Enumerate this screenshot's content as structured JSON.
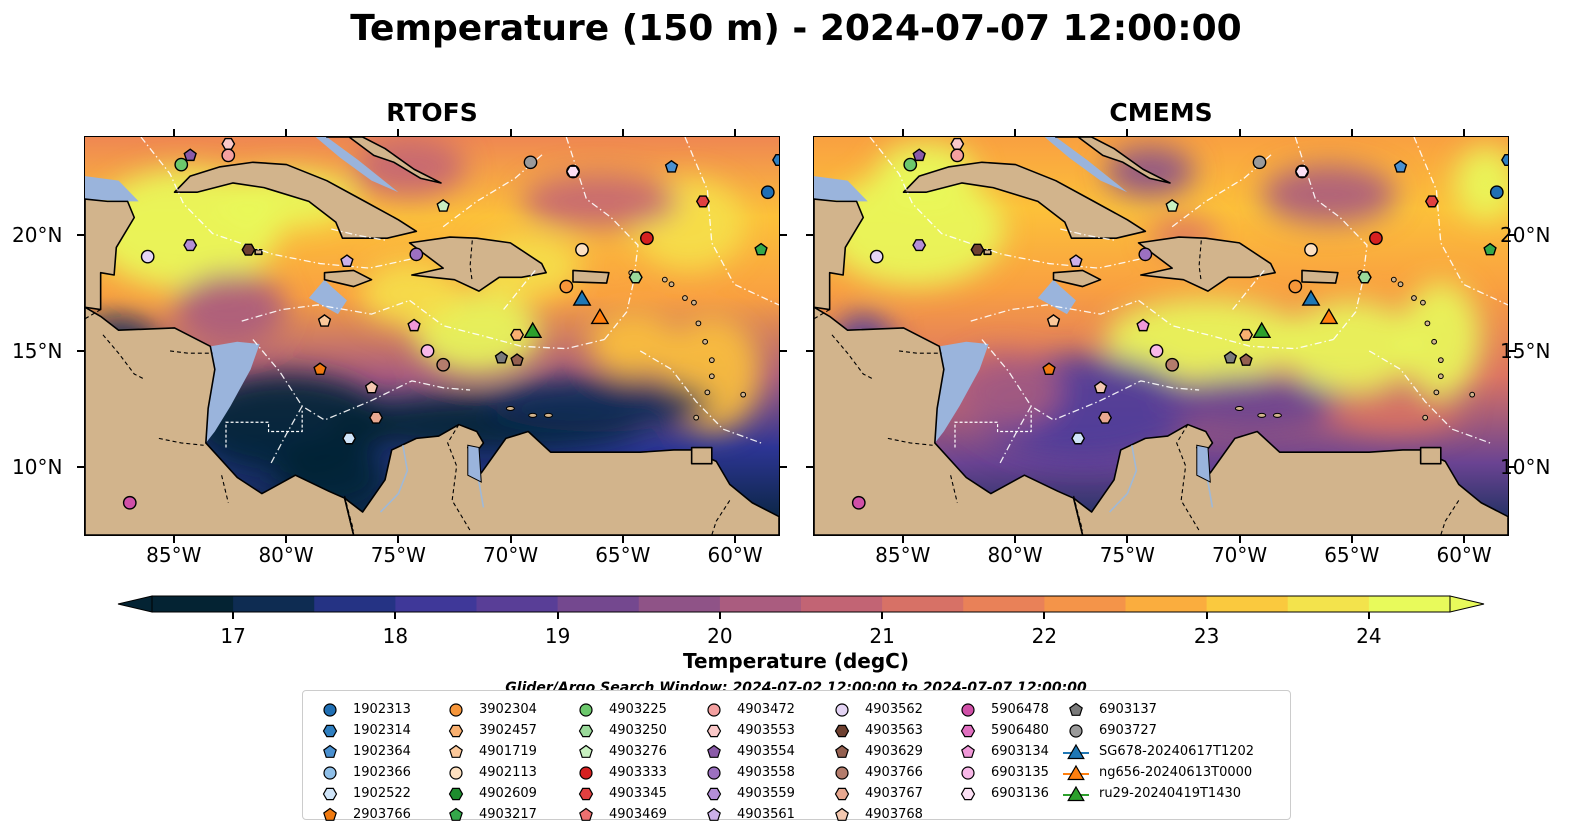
{
  "title": "Temperature (150 m) - 2024-07-07 12:00:00",
  "panels": [
    {
      "id": "left",
      "title": "RTOFS"
    },
    {
      "id": "right",
      "title": "CMEMS"
    }
  ],
  "axes": {
    "lon_ticks": [
      "85°W",
      "80°W",
      "75°W",
      "70°W",
      "65°W",
      "60°W"
    ],
    "lat_ticks": [
      "20°N",
      "15°N",
      "10°N"
    ],
    "lon_range": [
      -89,
      -58
    ],
    "lat_range": [
      7,
      24.3
    ]
  },
  "colorbar": {
    "label": "Temperature (degC)",
    "ticks": [
      "17",
      "18",
      "19",
      "20",
      "21",
      "22",
      "23",
      "24"
    ],
    "range": [
      16.5,
      24.5
    ],
    "extend": "both",
    "colormap": "thermal"
  },
  "search_window": "Glider/Argo Search Window: 2024-07-02 12:00:00 to 2024-07-07 12:00:00",
  "colors": {
    "land": "#d2b48c",
    "shelf": "#9ab4dc",
    "colormap_stops": [
      "#042333",
      "#0f2d57",
      "#2d3595",
      "#4b3a9b",
      "#6a4392",
      "#895189",
      "#a85b80",
      "#c46573",
      "#dc7463",
      "#ef8752",
      "#f9a041",
      "#fcc13a",
      "#f5e04a",
      "#e8fa5b"
    ]
  },
  "legend": {
    "columns": [
      [
        {
          "label": "1902313",
          "marker": "circle",
          "color": "#1f6fb4"
        },
        {
          "label": "1902314",
          "marker": "hexagon",
          "color": "#2f7fc0"
        },
        {
          "label": "1902364",
          "marker": "pentagon",
          "color": "#4a90d0"
        },
        {
          "label": "1902366",
          "marker": "circle",
          "color": "#8fbfe8"
        },
        {
          "label": "1902522",
          "marker": "hexagon",
          "color": "#cfe4f8"
        },
        {
          "label": "2903766",
          "marker": "pentagon",
          "color": "#f07a10"
        }
      ],
      [
        {
          "label": "3902304",
          "marker": "circle",
          "color": "#f7963a"
        },
        {
          "label": "3902457",
          "marker": "hexagon",
          "color": "#f9b070"
        },
        {
          "label": "4901719",
          "marker": "pentagon",
          "color": "#fbc89a"
        },
        {
          "label": "4902113",
          "marker": "circle",
          "color": "#fde0c0"
        },
        {
          "label": "4902609",
          "marker": "hexagon",
          "color": "#1e8c2e"
        },
        {
          "label": "4903217",
          "marker": "pentagon",
          "color": "#34a84a"
        }
      ],
      [
        {
          "label": "4903225",
          "marker": "circle",
          "color": "#6cc86c"
        },
        {
          "label": "4903250",
          "marker": "hexagon",
          "color": "#9ad99a"
        },
        {
          "label": "4903276",
          "marker": "pentagon",
          "color": "#c8f0c0"
        },
        {
          "label": "4903333",
          "marker": "circle",
          "color": "#d62020"
        },
        {
          "label": "4903345",
          "marker": "hexagon",
          "color": "#e04040"
        },
        {
          "label": "4903469",
          "marker": "pentagon",
          "color": "#ec7070"
        }
      ],
      [
        {
          "label": "4903472",
          "marker": "circle",
          "color": "#f4a0a0"
        },
        {
          "label": "4903553",
          "marker": "hexagon",
          "color": "#fac8c8"
        },
        {
          "label": "4903554",
          "marker": "pentagon",
          "color": "#8a5aa8"
        },
        {
          "label": "4903558",
          "marker": "circle",
          "color": "#9c70c0"
        },
        {
          "label": "4903559",
          "marker": "hexagon",
          "color": "#b48ed6"
        },
        {
          "label": "4903561",
          "marker": "pentagon",
          "color": "#ccb0e8"
        }
      ],
      [
        {
          "label": "4903562",
          "marker": "circle",
          "color": "#e4d4f4"
        },
        {
          "label": "4903563",
          "marker": "hexagon",
          "color": "#6e4030"
        },
        {
          "label": "4903629",
          "marker": "pentagon",
          "color": "#946050"
        },
        {
          "label": "4903766",
          "marker": "circle",
          "color": "#b47c6c"
        },
        {
          "label": "4903767",
          "marker": "hexagon",
          "color": "#e8a890"
        },
        {
          "label": "4903768",
          "marker": "pentagon",
          "color": "#f4c8b0"
        }
      ],
      [
        {
          "label": "5906478",
          "marker": "circle",
          "color": "#d050a8"
        },
        {
          "label": "5906480",
          "marker": "hexagon",
          "color": "#e070c0"
        },
        {
          "label": "6903134",
          "marker": "pentagon",
          "color": "#f098d8"
        },
        {
          "label": "6903135",
          "marker": "circle",
          "color": "#f8b8e8"
        },
        {
          "label": "6903136",
          "marker": "hexagon",
          "color": "#fce0f4"
        }
      ],
      [
        {
          "label": "6903137",
          "marker": "pentagon",
          "color": "#7a7a7a"
        },
        {
          "label": "6903727",
          "marker": "circle",
          "color": "#9a9a9a"
        },
        {
          "label": "SG678-20240617T1202",
          "marker": "triangle-line",
          "color": "#1f77b4"
        },
        {
          "label": "ng656-20240613T0000",
          "marker": "triangle-line",
          "color": "#ff7f0e"
        },
        {
          "label": "ru29-20240419T1430",
          "marker": "triangle-line",
          "color": "#2ca02c"
        }
      ]
    ]
  },
  "observations": [
    {
      "id": "1902313",
      "lon": -58.5,
      "lat": 21.9
    },
    {
      "id": "1902314",
      "lon": -58.0,
      "lat": 23.3
    },
    {
      "id": "1902364",
      "lon": -62.8,
      "lat": 23.0
    },
    {
      "id": "1902366",
      "lon": -67.2,
      "lat": 22.8
    },
    {
      "id": "1902522",
      "lon": -77.2,
      "lat": 11.2
    },
    {
      "id": "2903766",
      "lon": -78.5,
      "lat": 14.2
    },
    {
      "id": "3902304",
      "lon": -67.5,
      "lat": 17.8
    },
    {
      "id": "3902457",
      "lon": -69.7,
      "lat": 15.7
    },
    {
      "id": "4901719",
      "lon": -78.3,
      "lat": 16.3
    },
    {
      "id": "4902113",
      "lon": -66.8,
      "lat": 19.4
    },
    {
      "id": "4902609",
      "lon": -64.4,
      "lat": 18.2
    },
    {
      "id": "4903217",
      "lon": -58.8,
      "lat": 19.4
    },
    {
      "id": "4903225",
      "lon": -84.7,
      "lat": 23.1
    },
    {
      "id": "4903250",
      "lon": -64.4,
      "lat": 18.2
    },
    {
      "id": "4903276",
      "lon": -73.0,
      "lat": 21.3
    },
    {
      "id": "4903333",
      "lon": -63.9,
      "lat": 19.9
    },
    {
      "id": "4903345",
      "lon": -61.4,
      "lat": 21.5
    },
    {
      "id": "4903469",
      "lon": -82.6,
      "lat": 23.5
    },
    {
      "id": "4903472",
      "lon": -82.6,
      "lat": 23.5
    },
    {
      "id": "4903553",
      "lon": -82.6,
      "lat": 24.0
    },
    {
      "id": "4903554",
      "lon": -84.3,
      "lat": 23.5
    },
    {
      "id": "4903558",
      "lon": -74.2,
      "lat": 19.2
    },
    {
      "id": "4903559",
      "lon": -84.3,
      "lat": 19.6
    },
    {
      "id": "4903561",
      "lon": -77.3,
      "lat": 18.9
    },
    {
      "id": "4903562",
      "lon": -86.2,
      "lat": 19.1
    },
    {
      "id": "4903563",
      "lon": -81.7,
      "lat": 19.4
    },
    {
      "id": "4903629",
      "lon": -69.7,
      "lat": 14.6
    },
    {
      "id": "4903766",
      "lon": -73.0,
      "lat": 14.4
    },
    {
      "id": "4903767",
      "lon": -76.0,
      "lat": 12.1
    },
    {
      "id": "4903768",
      "lon": -76.2,
      "lat": 13.4
    },
    {
      "id": "5906478",
      "lon": -87.0,
      "lat": 8.4
    },
    {
      "id": "6903134",
      "lon": -74.3,
      "lat": 16.1
    },
    {
      "id": "6903135",
      "lon": -73.7,
      "lat": 15.0
    },
    {
      "id": "6903136",
      "lon": -67.2,
      "lat": 22.8
    },
    {
      "id": "6903137",
      "lon": -70.4,
      "lat": 14.7
    },
    {
      "id": "6903727",
      "lon": -69.1,
      "lat": 23.2
    }
  ],
  "gliders": [
    {
      "id": "SG678-20240617T1202",
      "lon": -66.8,
      "lat": 17.2,
      "color": "#1f77b4"
    },
    {
      "id": "ng656-20240613T0000",
      "lon": -66.0,
      "lat": 16.4,
      "color": "#ff7f0e"
    },
    {
      "id": "ru29-20240419T1430",
      "lon": -69.0,
      "lat": 15.8,
      "color": "#2ca02c"
    }
  ]
}
